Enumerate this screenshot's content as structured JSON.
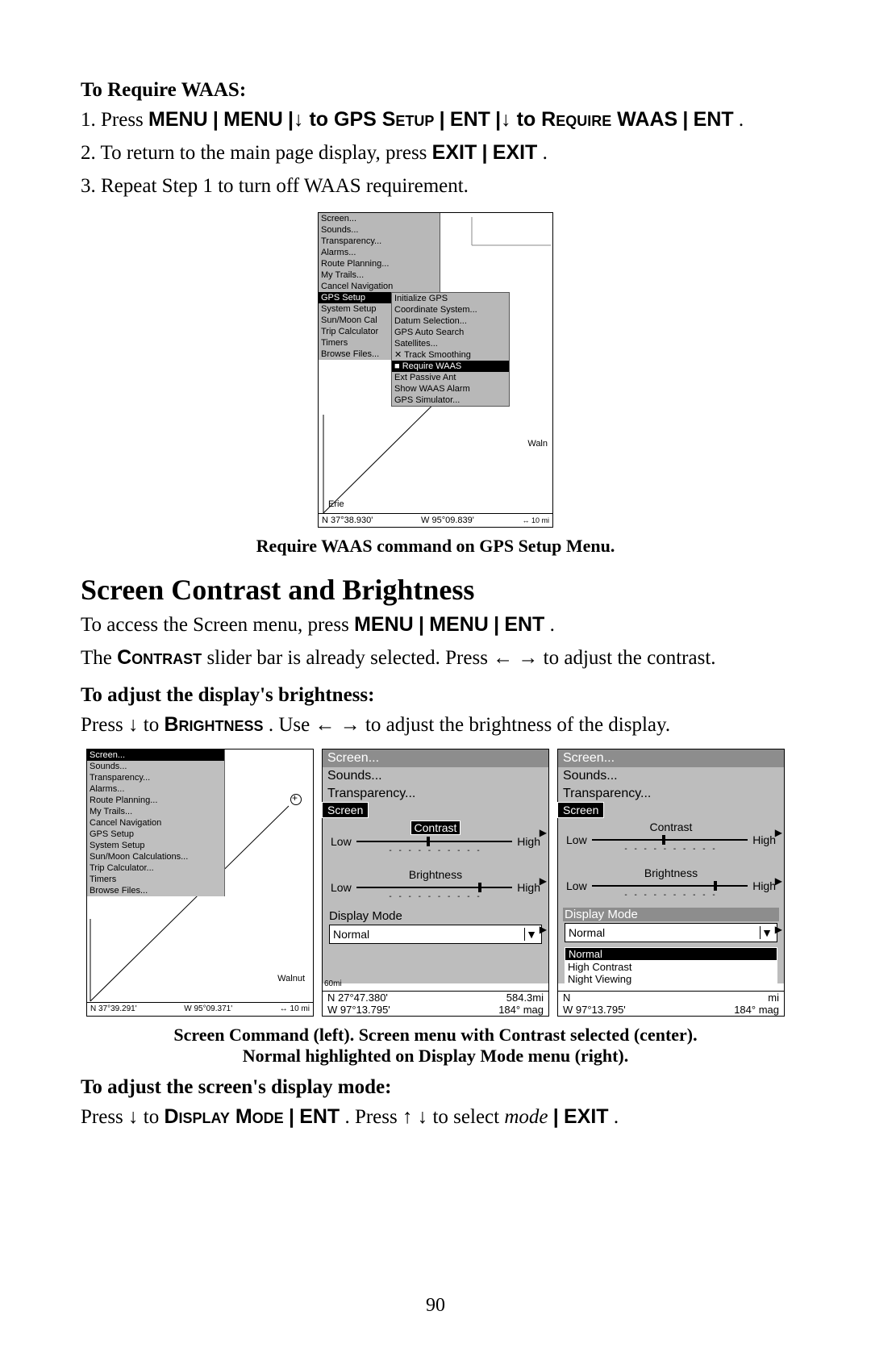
{
  "toRequire": {
    "heading": "To Require WAAS:",
    "step1_a": "1. Press ",
    "step1_b": "MENU",
    "step1_c": "|",
    "step1_d": "MENU",
    "step1_e": "|↓ to ",
    "step1_f": "GPS Setup",
    "step1_g": "|",
    "step1_h": "ENT",
    "step1_i": "|↓ to ",
    "step1_j": "Require WAAS",
    "step1_k": "|",
    "step1_l": "ENT",
    "step1_m": ".",
    "step2_a": "2. To return to the main page display, press ",
    "step2_b": "EXIT",
    "step2_c": "|",
    "step2_d": "EXIT",
    "step2_e": ".",
    "step3": "3. Repeat Step 1 to turn off WAAS requirement."
  },
  "fig1": {
    "menu1": [
      "Screen...",
      "Sounds...",
      "Transparency...",
      "Alarms...",
      "Route Planning...",
      "My Trails...",
      "Cancel Navigation",
      "GPS Setup",
      "System Setup",
      "Sun/Moon Cal",
      "Trip Calculator",
      "Timers",
      "Browse Files..."
    ],
    "menu1_hl_index": 7,
    "menu2": [
      "Initialize GPS",
      "Coordinate System...",
      "Datum Selection...",
      "GPS Auto Search",
      "Satellites...",
      "✕ Track Smoothing",
      "■ Require WAAS",
      "  Ext Passive Ant",
      "  Show WAAS Alarm",
      "  GPS Simulator..."
    ],
    "menu2_hl_index": 6,
    "waln": "Waln",
    "erie": "Erie",
    "bottom_left": "N   37°38.930'",
    "bottom_mid": "W   95°09.839'",
    "bottom_right": "↔   10 mi"
  },
  "caption1": "Require WAAS command on GPS Setup Menu.",
  "sectionTitle": "Screen Contrast and Brightness",
  "screenAccess": {
    "a": "To access the Screen menu, press ",
    "b": "MENU",
    "c": "|",
    "d": "MENU",
    "e": "|",
    "f": "ENT",
    "g": "."
  },
  "contrastLine": {
    "a": "The ",
    "b": "Contrast",
    "c": " slider bar is already selected. Press ← → to adjust the contrast."
  },
  "brightHeading": "To adjust the display's brightness:",
  "brightLine": {
    "a": "Press ↓ to ",
    "b": "Brightness",
    "c": ". Use ← → to adjust the brightness of the display."
  },
  "trip": {
    "left": {
      "menu": [
        "Screen...",
        "Sounds...",
        "Transparency...",
        "Alarms...",
        "Route Planning...",
        "My Trails...",
        "Cancel Navigation",
        "GPS Setup",
        "System Setup",
        "Sun/Moon Calculations...",
        "Trip Calculator...",
        "Timers",
        "Browse Files..."
      ],
      "hl_index": 0,
      "walnut": "Walnut",
      "bottom_left": "N   37°39.291'",
      "bottom_mid": "W   95°09.371'",
      "bottom_right": "↔   10 mi"
    },
    "center": {
      "hdr": "Screen...",
      "l2": "Sounds...",
      "l3": "Transparency...",
      "panelTitle": "Screen",
      "contrast": "Contrast",
      "brightness": "Brightness",
      "low": "Low",
      "high": "High",
      "dots": "- - - - - - - - - -",
      "displayMode": "Display Mode",
      "selected": "Normal",
      "sixty": "60mi",
      "coord_n": "N   27°47.380'",
      "coord_w": "W   97°13.795'",
      "dist": "584.3mi",
      "head": "184° mag"
    },
    "right": {
      "hdr": "Screen...",
      "l2": "Sounds...",
      "l3": "Transparency...",
      "panelTitle": "Screen",
      "contrast": "Contrast",
      "brightness": "Brightness",
      "low": "Low",
      "high": "High",
      "dots": "- - - - - - - - - -",
      "displayMode": "Display Mode",
      "selected": "Normal",
      "modes": [
        "Normal",
        "High Contrast",
        "Night Viewing"
      ],
      "modes_hl_index": 0,
      "coord_n": "N",
      "coord_w": "W   97°13.795'",
      "dist": "mi",
      "head": "184° mag"
    }
  },
  "caption2a": "Screen Command (left). Screen menu with Contrast selected (center).",
  "caption2b": "Normal highlighted on Display Mode menu (right).",
  "dispModeHeading": "To adjust the screen's display mode",
  "dispModeLine": {
    "a": "Press ↓ to ",
    "b": "Display Mode",
    "c": "|",
    "d": "ENT",
    "e": ". Press ↑ ↓ to select ",
    "f": "mode",
    "g": "|",
    "h": "EXIT",
    "i": "."
  },
  "pageNumber": "90"
}
